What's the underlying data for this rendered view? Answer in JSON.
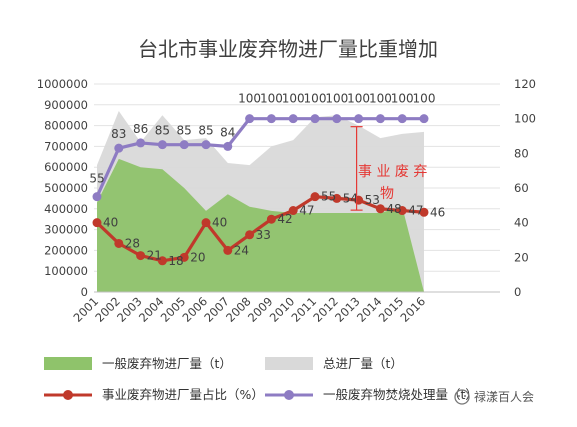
{
  "chart_data": {
    "type": "area+line",
    "title": "台北市事业废弃物进厂量比重增加",
    "categories": [
      "2001",
      "2002",
      "2003",
      "2004",
      "2005",
      "2006",
      "2007",
      "2008",
      "2009",
      "2010",
      "2011",
      "2012",
      "2013",
      "2014",
      "2015",
      "2016"
    ],
    "y_left": {
      "min": 0,
      "max": 1000000,
      "ticks": [
        "0",
        "100000",
        "200000",
        "300000",
        "400000",
        "500000",
        "600000",
        "700000",
        "800000",
        "900000",
        "1000000"
      ]
    },
    "y_right": {
      "min": 0,
      "max": 120,
      "ticks": [
        "0",
        "20",
        "40",
        "60",
        "80",
        "100",
        "120"
      ]
    },
    "series": [
      {
        "name": "一般废弃物进厂量（t）",
        "type": "area",
        "axis": "left",
        "color": "#8fc36b",
        "values": [
          430000,
          640000,
          600000,
          590000,
          500000,
          390000,
          470000,
          410000,
          390000,
          380000,
          380000,
          380000,
          380000,
          380000,
          410000,
          0
        ]
      },
      {
        "name": "总进厂量（t）",
        "type": "area",
        "axis": "left",
        "color": "#d9d9d9",
        "values": [
          610000,
          870000,
          720000,
          850000,
          730000,
          740000,
          620000,
          610000,
          700000,
          730000,
          840000,
          850000,
          800000,
          740000,
          760000,
          770000
        ]
      },
      {
        "name": "事业废弃物进厂量占比（%）",
        "type": "line",
        "axis": "right",
        "color": "#c0392b",
        "values": [
          40,
          28,
          21,
          18,
          20,
          40,
          24,
          33,
          42,
          47,
          55,
          54,
          53,
          48,
          47,
          46
        ],
        "data_labels": [
          "40",
          "28",
          "21",
          "18",
          "20",
          "40",
          "24",
          "33",
          "42",
          "47",
          "55",
          "54",
          "53",
          "48",
          "47",
          "46"
        ]
      },
      {
        "name": "一般废弃物焚烧处理量（t）",
        "type": "line",
        "axis": "right",
        "color": "#8e7cc3",
        "values": [
          55,
          83,
          86,
          85,
          85,
          85,
          84,
          100,
          100,
          100,
          100,
          100,
          100,
          100,
          100,
          100
        ],
        "data_labels": [
          "55",
          "83",
          "86",
          "85",
          "85",
          "85",
          "84",
          "100",
          "100",
          "100",
          "100",
          "100",
          "100",
          "100",
          "100",
          "100"
        ]
      }
    ],
    "annotation": {
      "line1": "事 业 废 弃",
      "line2": "物"
    },
    "grid": true,
    "legend_position": "bottom"
  },
  "legend": {
    "item1": "一般废弃物进厂量（t）",
    "item2": "总进厂量（t）",
    "item3": "事业废弃物进厂量占比（%）",
    "item4": "一般废弃物焚烧处理量（t）"
  },
  "watermark": "禄漾百人会"
}
